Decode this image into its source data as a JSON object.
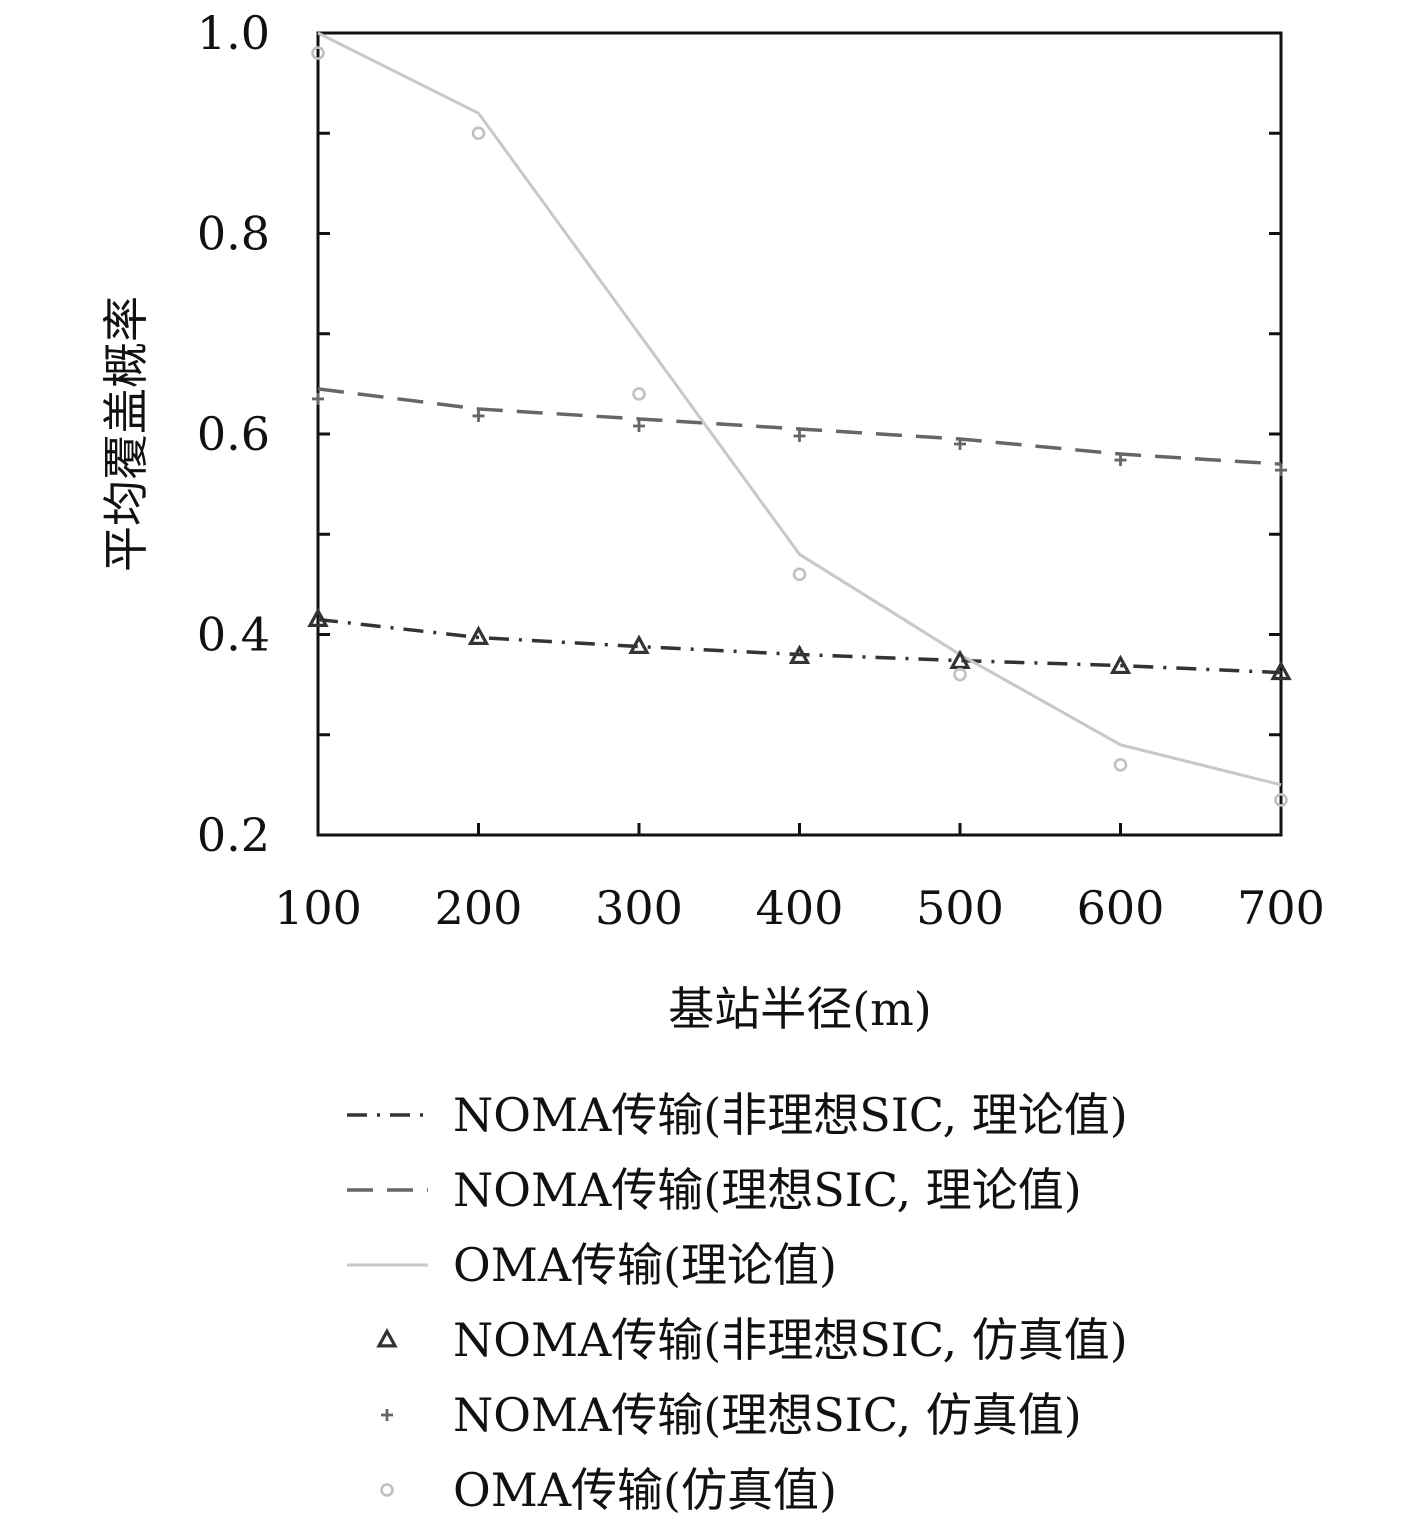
{
  "chart_data": {
    "type": "line",
    "title": "",
    "xlabel": "基站半径(m)",
    "ylabel": "平均覆盖概率",
    "xlim": [
      100,
      700
    ],
    "ylim": [
      0.2,
      1.0
    ],
    "x_ticks": [
      100,
      200,
      300,
      400,
      500,
      600,
      700
    ],
    "x_tick_labels": [
      "100",
      "200",
      "300",
      "400",
      "500",
      "600",
      "700"
    ],
    "y_ticks": [
      0.2,
      0.4,
      0.6,
      0.8,
      1.0
    ],
    "y_tick_labels": [
      "0.2",
      "0.4",
      "0.6",
      "0.8",
      "1.0"
    ],
    "grid": false,
    "legend_position": "below",
    "x": [
      100,
      200,
      300,
      400,
      500,
      600,
      700
    ],
    "series": [
      {
        "name": "NOMA传输(非理想SIC, 理论值)",
        "kind": "line",
        "style": "dashdot",
        "color": "#333333",
        "values": [
          0.415,
          0.397,
          0.388,
          0.38,
          0.374,
          0.369,
          0.362
        ]
      },
      {
        "name": "NOMA传输(理想SIC, 理论值)",
        "kind": "line",
        "style": "dashed",
        "color": "#666666",
        "values": [
          0.645,
          0.625,
          0.615,
          0.605,
          0.595,
          0.58,
          0.57
        ]
      },
      {
        "name": "OMA传输(理论值)",
        "kind": "line",
        "style": "solid",
        "color": "#c8c8c8",
        "values": [
          1.0,
          0.92,
          0.7,
          0.48,
          0.38,
          0.29,
          0.25
        ]
      },
      {
        "name": "NOMA传输(非理想SIC, 仿真值)",
        "kind": "marker",
        "marker": "triangle",
        "color": "#333333",
        "values": [
          0.415,
          0.397,
          0.388,
          0.378,
          0.373,
          0.368,
          0.362
        ]
      },
      {
        "name": "NOMA传输(理想SIC, 仿真值)",
        "kind": "marker",
        "marker": "plus",
        "color": "#666666",
        "values": [
          0.635,
          0.618,
          0.608,
          0.598,
          0.59,
          0.574,
          0.564
        ]
      },
      {
        "name": "OMA传输(仿真值)",
        "kind": "marker",
        "marker": "circle",
        "color": "#c0c0c0",
        "values": [
          0.98,
          0.9,
          0.64,
          0.46,
          0.36,
          0.27,
          0.235
        ]
      }
    ]
  }
}
